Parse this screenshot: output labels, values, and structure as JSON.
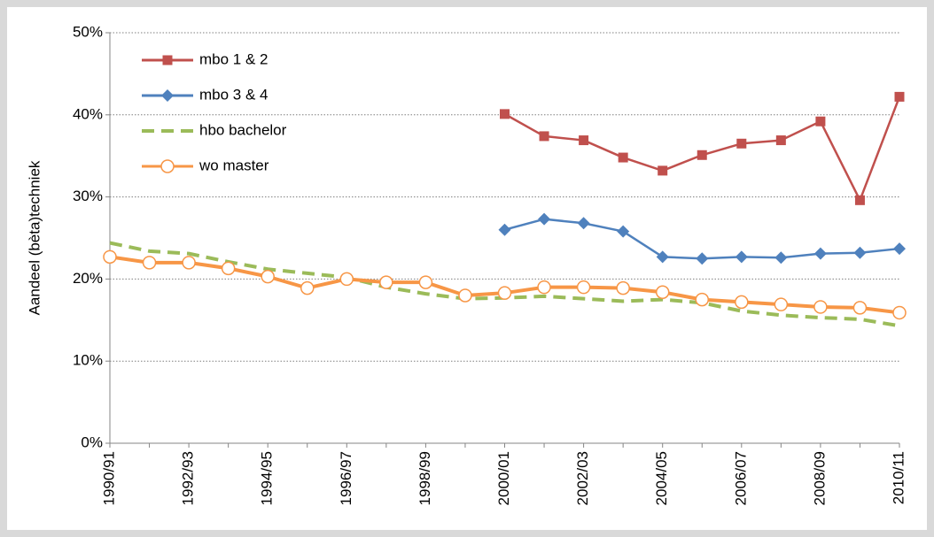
{
  "chart_data": {
    "type": "line",
    "y_label": "Aandeel  (bèta)techniek",
    "categories": [
      "1990/91",
      null,
      "1992/93",
      null,
      "1994/95",
      null,
      "1996/97",
      null,
      "1998/99",
      null,
      "2000/01",
      null,
      "2002/03",
      null,
      "2004/05",
      null,
      "2006/07",
      null,
      "2008/09",
      null,
      "2010/11"
    ],
    "series": [
      {
        "name": "mbo 1 & 2",
        "color": "#c0504d",
        "marker": "square",
        "values": [
          null,
          null,
          null,
          null,
          null,
          null,
          null,
          null,
          null,
          null,
          40.1,
          37.4,
          36.9,
          34.8,
          33.2,
          35.1,
          36.5,
          36.9,
          39.2,
          29.6,
          42.2
        ]
      },
      {
        "name": "mbo 3 & 4",
        "color": "#4f81bd",
        "marker": "diamond",
        "values": [
          null,
          null,
          null,
          null,
          null,
          null,
          null,
          null,
          null,
          null,
          26.0,
          27.3,
          26.8,
          25.8,
          22.7,
          22.5,
          22.7,
          22.6,
          23.1,
          23.2,
          23.7
        ]
      },
      {
        "name": "hbo bachelor",
        "color": "#9bbb59",
        "dashed": true,
        "values": [
          24.4,
          23.4,
          23.1,
          22.1,
          21.2,
          20.7,
          20.2,
          19.0,
          18.2,
          17.6,
          17.7,
          17.9,
          17.6,
          17.3,
          17.5,
          17.1,
          16.1,
          15.6,
          15.3,
          15.1,
          14.3
        ]
      },
      {
        "name": "wo master",
        "color": "#f79646",
        "marker": "open-circle",
        "values": [
          22.7,
          22.0,
          22.0,
          21.3,
          20.3,
          18.9,
          20.0,
          19.6,
          19.6,
          18.0,
          18.3,
          19.0,
          19.0,
          18.9,
          18.4,
          17.5,
          17.2,
          16.9,
          16.6,
          16.5,
          15.9
        ]
      }
    ],
    "ylim": [
      0,
      50
    ],
    "yticks": [
      {
        "value": 0,
        "label": "0%"
      },
      {
        "value": 10,
        "label": "10%"
      },
      {
        "value": 20,
        "label": "20%"
      },
      {
        "value": 30,
        "label": "30%"
      },
      {
        "value": 40,
        "label": "40%"
      },
      {
        "value": 50,
        "label": "50%"
      }
    ],
    "grid": true,
    "legend": "top-left"
  }
}
